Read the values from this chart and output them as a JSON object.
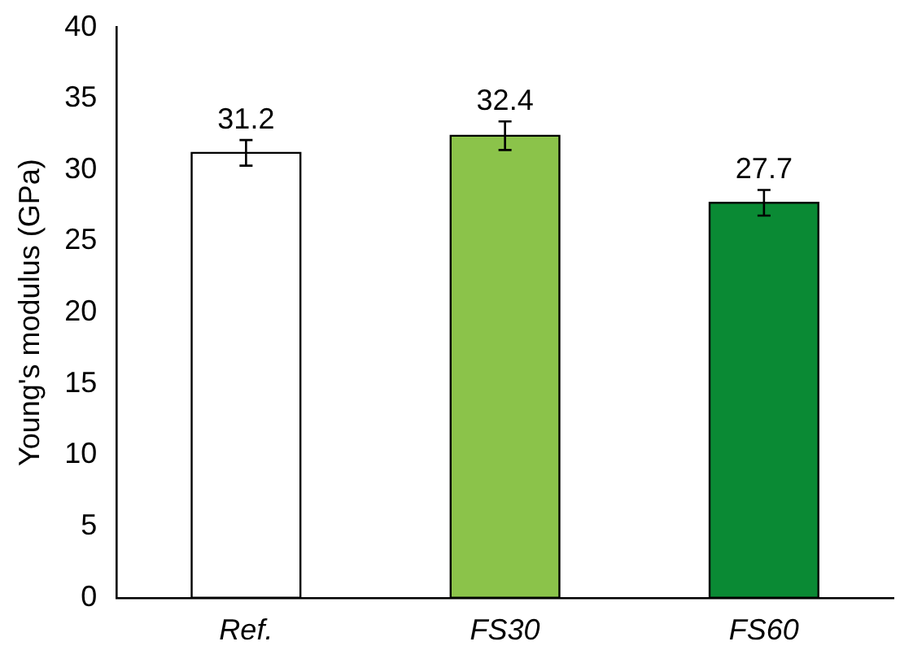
{
  "chart_data": {
    "type": "bar",
    "ylabel": "Young's modulus (GPa)",
    "categories": [
      "Ref.",
      "FS30",
      "FS60"
    ],
    "values": [
      31.2,
      32.4,
      27.7
    ],
    "colors": [
      "#ffffff",
      "#8bc34a",
      "#0a8a34"
    ],
    "errors": [
      0.9,
      1.0,
      0.9
    ],
    "ylim": [
      0,
      40
    ],
    "yticks": [
      0,
      5,
      10,
      15,
      20,
      25,
      30,
      35,
      40
    ],
    "data_labels": true
  }
}
